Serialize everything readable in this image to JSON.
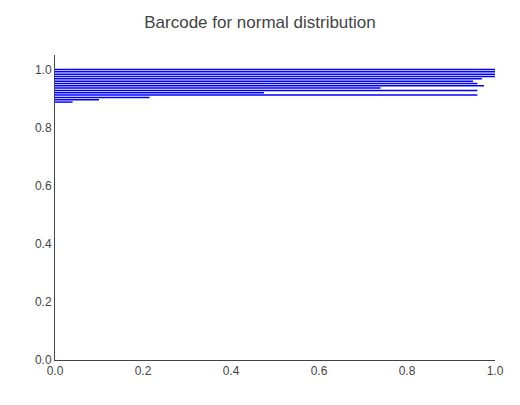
{
  "chart_data": {
    "type": "barcode",
    "title": "Barcode for normal distribution",
    "color": "#0000ff",
    "x_start": [
      0.0,
      0.0,
      0.0,
      0.0,
      0.0,
      0.0,
      0.0,
      0.0,
      0.0,
      0.0,
      0.0,
      0.0,
      0.0,
      0.0,
      0.0
    ],
    "x_end": [
      1.0,
      1.0,
      1.0,
      1.0,
      0.97,
      0.95,
      0.96,
      0.975,
      0.74,
      0.96,
      0.475,
      0.96,
      0.215,
      0.1,
      0.04
    ],
    "values": [
      1.0,
      0.992,
      0.984,
      0.976,
      0.968,
      0.96,
      0.952,
      0.944,
      0.936,
      0.928,
      0.92,
      0.912,
      0.904,
      0.896,
      0.888
    ],
    "xlim": [
      0.0,
      1.0
    ],
    "ylim": [
      0.0,
      1.05
    ],
    "xticks": [
      {
        "value": 0,
        "label": "0.0"
      },
      0.2,
      0.4,
      0.6,
      0.8,
      {
        "value": 1,
        "label": "1.0"
      }
    ],
    "yticks": [
      {
        "value": 0,
        "label": "0.0"
      },
      0.2,
      0.4,
      0.6,
      0.8,
      {
        "value": 1,
        "label": "1.0"
      }
    ],
    "grid": false
  }
}
